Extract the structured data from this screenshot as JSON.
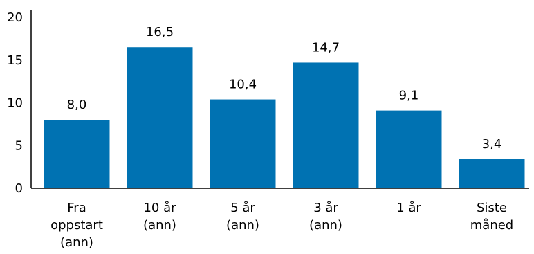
{
  "chart_data": {
    "type": "bar",
    "categories": [
      [
        "Fra",
        "oppstart",
        "(ann)"
      ],
      [
        "10 år",
        "(ann)"
      ],
      [
        "5 år",
        "(ann)"
      ],
      [
        "3 år",
        "(ann)"
      ],
      [
        "1 år"
      ],
      [
        "Siste",
        "måned"
      ]
    ],
    "values": [
      8.0,
      16.5,
      10.4,
      14.7,
      9.1,
      3.4
    ],
    "data_labels": [
      "8,0",
      "16,5",
      "10,4",
      "14,7",
      "9,1",
      "3,4"
    ],
    "y_ticks": [
      0,
      5,
      10,
      15,
      20
    ],
    "ylim": [
      0,
      20
    ],
    "bar_color": "#0072B2",
    "axis_color": "#000000",
    "grid": false,
    "legend": "none"
  }
}
